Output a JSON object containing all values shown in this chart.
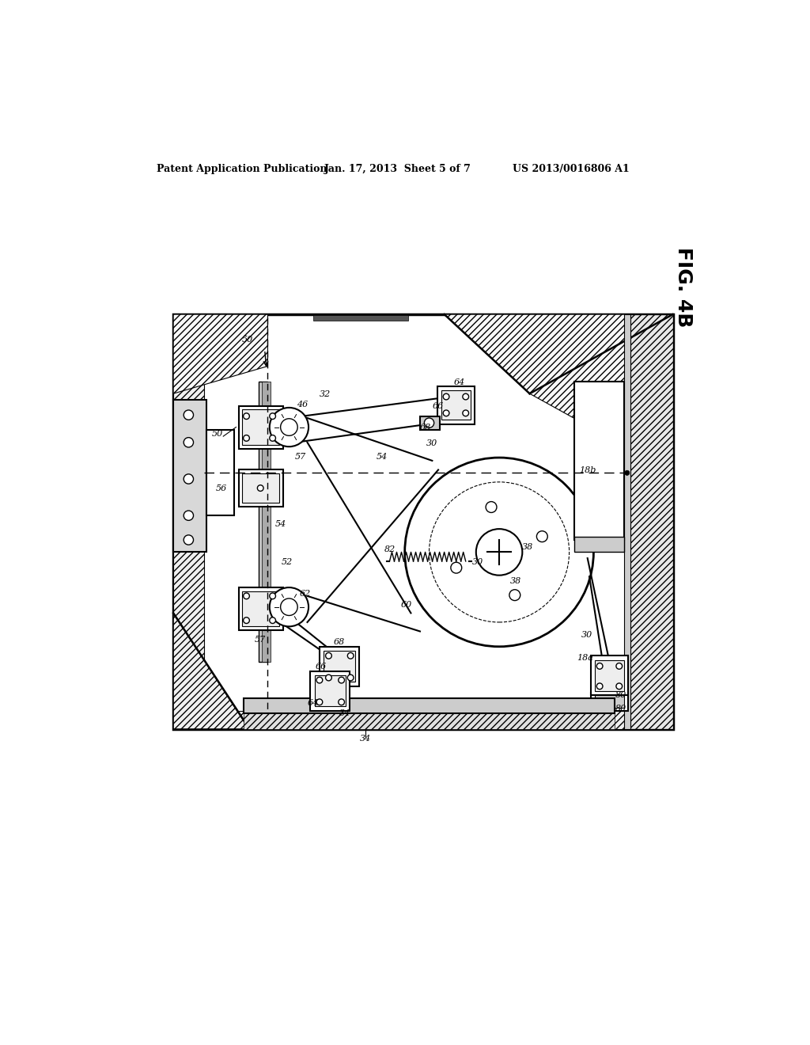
{
  "background_color": "#ffffff",
  "header_left": "Patent Application Publication",
  "header_mid": "Jan. 17, 2013  Sheet 5 of 7",
  "header_right": "US 2013/0016806 A1",
  "fig_label": "FIG. 4B",
  "line_color": "#000000"
}
